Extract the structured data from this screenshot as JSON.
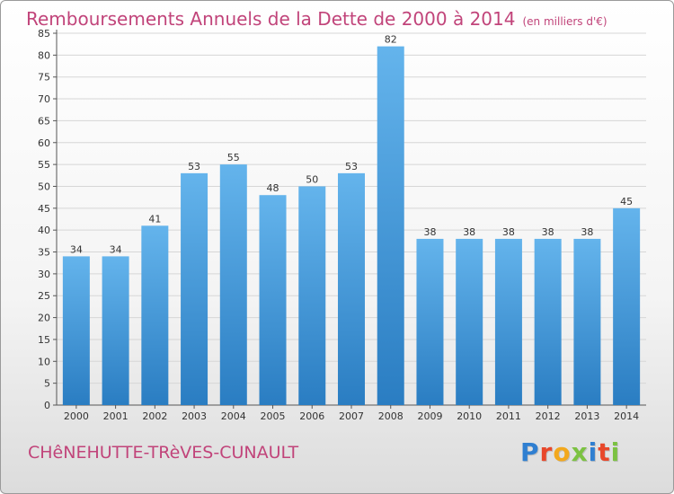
{
  "chart_data": {
    "type": "bar",
    "title": "Remboursements Annuels de la Dette de 2000 à 2014",
    "subtitle": "(en milliers d'€)",
    "categories": [
      "2000",
      "2001",
      "2002",
      "2003",
      "2004",
      "2005",
      "2006",
      "2007",
      "2008",
      "2009",
      "2010",
      "2011",
      "2012",
      "2013",
      "2014"
    ],
    "values": [
      34,
      34,
      41,
      53,
      55,
      48,
      50,
      53,
      82,
      38,
      38,
      38,
      38,
      38,
      45
    ],
    "ylim": [
      0,
      85
    ],
    "yticks": [
      0,
      5,
      10,
      15,
      20,
      25,
      30,
      35,
      40,
      45,
      50,
      55,
      60,
      65,
      70,
      75,
      80,
      85
    ],
    "grid": true,
    "xlabel": "",
    "ylabel": ""
  },
  "footer": {
    "town": "CHêNEHUTTE-TRèVES-CUNAULT",
    "logo_letters": [
      "P",
      "r",
      "o",
      "x",
      "i",
      "t",
      "i"
    ],
    "logo_colors": [
      "#2f7fd1",
      "#e8472a",
      "#f2a81d",
      "#7cc242",
      "#2f7fd1",
      "#e8472a",
      "#7cc242"
    ]
  },
  "colors": {
    "bar_top": "#64b4ec",
    "bar_bottom": "#2a7dc2",
    "title": "#c1447a"
  }
}
